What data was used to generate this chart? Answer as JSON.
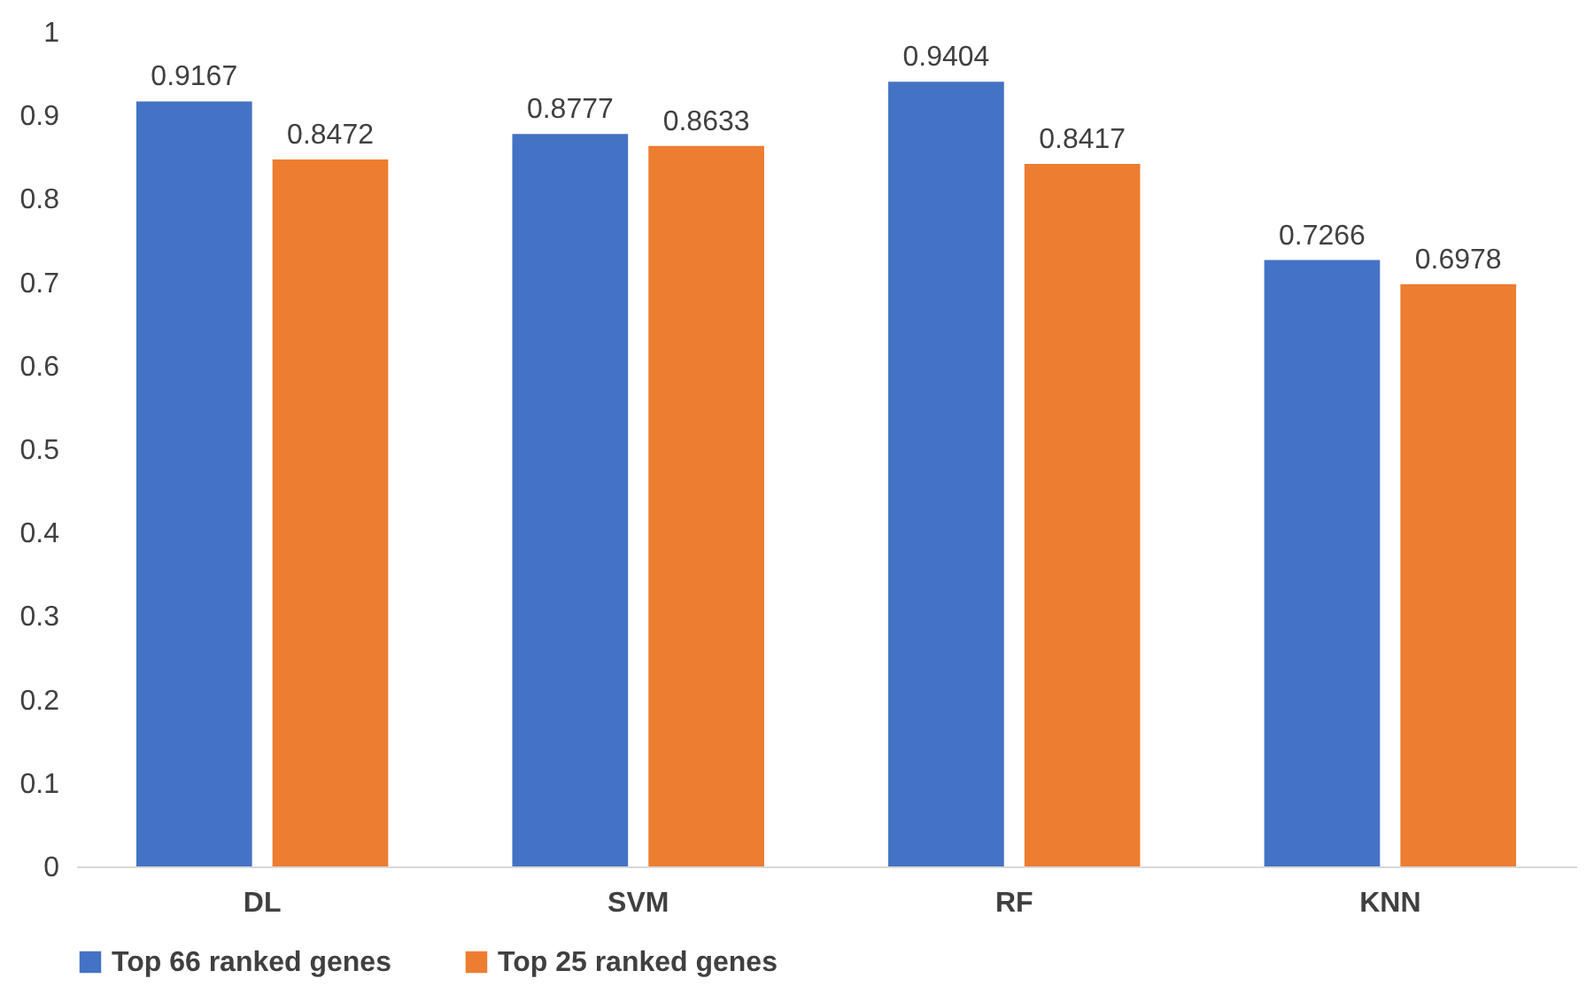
{
  "chart_data": {
    "type": "bar",
    "categories": [
      "DL",
      "SVM",
      "RF",
      "KNN"
    ],
    "series": [
      {
        "name": "Top 66 ranked genes",
        "color": "#4472c4",
        "values": [
          0.9167,
          0.8777,
          0.9404,
          0.7266
        ]
      },
      {
        "name": "Top 25 ranked genes",
        "color": "#ed7d31",
        "values": [
          0.8472,
          0.8633,
          0.8417,
          0.6978
        ]
      }
    ],
    "ylim": [
      0,
      1
    ],
    "yticks": [
      0,
      0.1,
      0.2,
      0.3,
      0.4,
      0.5,
      0.6,
      0.7,
      0.8,
      0.9,
      1
    ],
    "grid": false,
    "legend": "bottom",
    "data_labels": true
  }
}
